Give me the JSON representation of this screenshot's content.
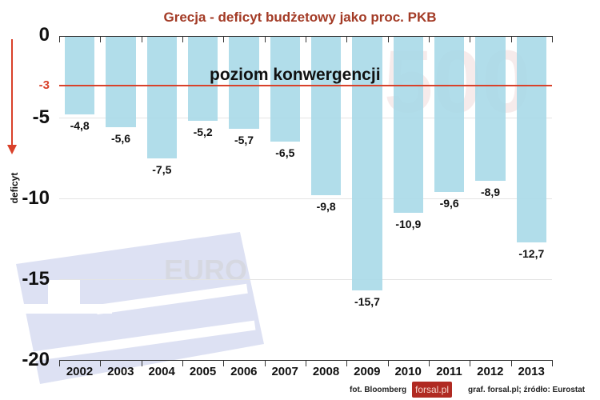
{
  "chart_data": {
    "type": "bar",
    "title": "Grecja - deficyt budżetowy jako proc. PKB",
    "xlabel": "",
    "ylabel": "deficyt",
    "categories": [
      "2002",
      "2003",
      "2004",
      "2005",
      "2006",
      "2007",
      "2008",
      "2009",
      "2010",
      "2011",
      "2012",
      "2013"
    ],
    "values": [
      -4.8,
      -5.6,
      -7.5,
      -5.2,
      -5.7,
      -6.5,
      -9.8,
      -15.7,
      -10.9,
      -9.6,
      -8.9,
      -12.7
    ],
    "value_labels": [
      "-4,8",
      "-5,6",
      "-7,5",
      "-5,2",
      "-5,7",
      "-6,5",
      "-9,8",
      "-15,7",
      "-10,9",
      "-9,6",
      "-8,9",
      "-12,7"
    ],
    "ylim": [
      -20,
      0
    ],
    "yticks": [
      "0",
      "-5",
      "-10",
      "-15",
      "-20"
    ],
    "reference_line": {
      "value": -3,
      "tick_label": "-3",
      "label": "poziom konwergencji",
      "color": "#d9412a"
    },
    "bar_color": "#a9d9e8",
    "grid": true,
    "legend": null
  },
  "title": "Grecja - deficyt budżetowy jako proc. PKB",
  "yaxis_title": "deficyt",
  "footer": {
    "photo_credit": "fot. Bloomberg",
    "logo": "forsal.pl",
    "source": "graf. forsal.pl;  źródło: Eurostat"
  },
  "colors": {
    "title": "#a33b26",
    "reference": "#d9412a",
    "bar": "#a9d9e8",
    "logo_bg": "#b02a22"
  }
}
